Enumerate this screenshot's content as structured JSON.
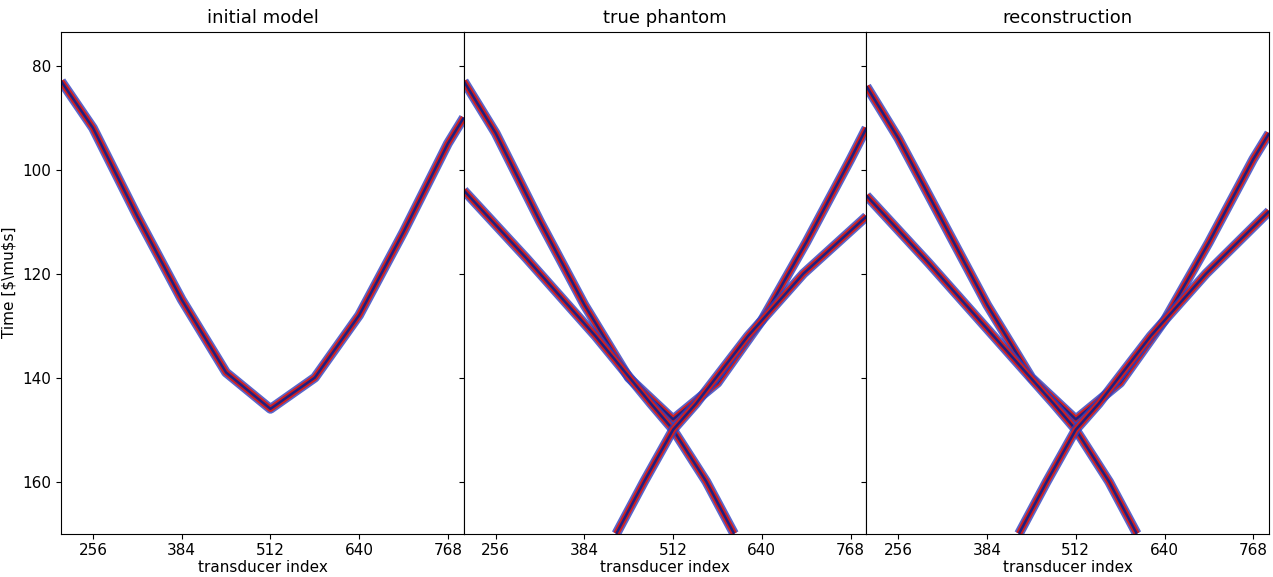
{
  "chart_data": [
    {
      "type": "line",
      "title": "initial model",
      "xlabel": "transducer index",
      "ylabel": "Time [$\\mu$s]",
      "xlim": [
        210,
        791
      ],
      "ylim": [
        170,
        73.5
      ],
      "xticks": [
        256,
        384,
        512,
        640,
        768
      ],
      "yticks": [
        80,
        100,
        120,
        140,
        160
      ],
      "series": [
        {
          "color": "#1f1f80",
          "x": [
            210,
            256,
            320,
            384,
            448,
            512,
            576,
            640,
            704,
            768,
            791
          ],
          "values": [
            83,
            92,
            109,
            125,
            139,
            146,
            140,
            128,
            112,
            95,
            90
          ]
        }
      ]
    },
    {
      "type": "line",
      "title": "true phantom",
      "xlabel": "transducer index",
      "xlim": [
        210,
        791
      ],
      "ylim": [
        170,
        73.5
      ],
      "xticks": [
        256,
        384,
        512,
        640,
        768
      ],
      "yticks": [
        80,
        100,
        120,
        140,
        160
      ],
      "tick_labels": "x",
      "series": [
        {
          "color": "#1f1f80",
          "x": [
            210,
            256,
            320,
            384,
            448,
            512,
            576,
            640,
            704,
            768,
            791
          ],
          "values": [
            83,
            93,
            110,
            126,
            140,
            148,
            141,
            129,
            114,
            98,
            92
          ]
        },
        {
          "color": "#1f1f80",
          "x": [
            210,
            300,
            400,
            480,
            512,
            560,
            600
          ],
          "values": [
            104,
            117,
            132,
            145,
            150,
            160,
            170
          ]
        },
        {
          "color": "#1f1f80",
          "x": [
            791,
            700,
            620,
            545,
            512,
            470,
            430
          ],
          "values": [
            109,
            120,
            132,
            145,
            150,
            160,
            170
          ]
        }
      ]
    },
    {
      "type": "line",
      "title": "reconstruction",
      "xlabel": "transducer index",
      "xlim": [
        210,
        791
      ],
      "ylim": [
        170,
        73.5
      ],
      "xticks": [
        256,
        384,
        512,
        640,
        768
      ],
      "yticks": [
        80,
        100,
        120,
        140,
        160
      ],
      "tick_labels": "x",
      "series": [
        {
          "color": "#1f1f80",
          "x": [
            210,
            256,
            320,
            384,
            448,
            512,
            576,
            640,
            704,
            768,
            791
          ],
          "values": [
            84,
            94,
            110,
            126,
            140,
            148,
            141,
            129,
            114,
            98,
            93
          ]
        },
        {
          "color": "#1f1f80",
          "x": [
            210,
            300,
            400,
            480,
            512,
            560,
            600
          ],
          "values": [
            105,
            118,
            133,
            145,
            150,
            160,
            170
          ]
        },
        {
          "color": "#1f1f80",
          "x": [
            791,
            700,
            620,
            545,
            512,
            470,
            430
          ],
          "values": [
            108,
            120,
            132,
            145,
            150,
            160,
            170
          ]
        }
      ]
    }
  ]
}
